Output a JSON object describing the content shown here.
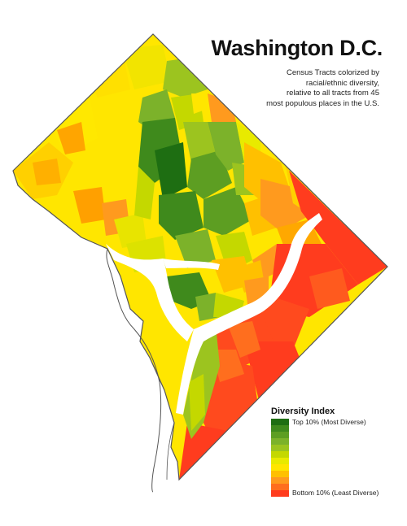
{
  "title": "Washington D.C.",
  "subtitle_lines": [
    "Census Tracts colorized by",
    "racial/ethnic diversity,",
    "relative to all tracts from 45",
    "most populous places in the U.S."
  ],
  "legend": {
    "title": "Diversity Index",
    "top_label": "Top 10% (Most Diverse)",
    "bottom_label": "Bottom 10% (Least Diverse)",
    "colors": [
      "#1e6e12",
      "#3f8a1c",
      "#5d9e22",
      "#7cb22a",
      "#9cc41f",
      "#c4d800",
      "#e8ea00",
      "#ffe600",
      "#ffc000",
      "#ff9a1e",
      "#ff6e1e",
      "#ff3c1e"
    ]
  },
  "colors": {
    "outline": "#555555",
    "river": "#ffffff"
  }
}
